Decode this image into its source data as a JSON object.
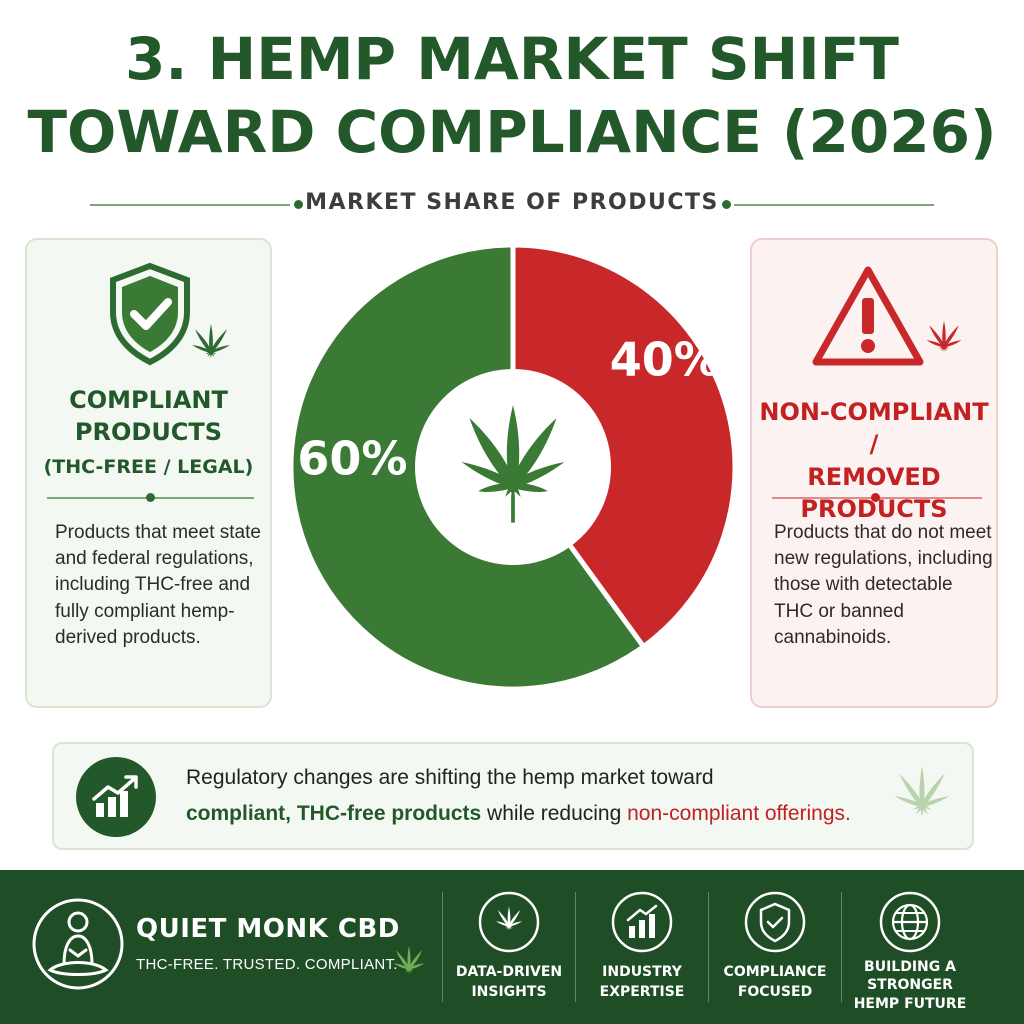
{
  "title": {
    "line1": "3. HEMP MARKET SHIFT",
    "line2": "TOWARD COMPLIANCE (2026)"
  },
  "subtitle": "MARKET SHARE OF PRODUCTS",
  "left_card": {
    "heading_line1": "COMPLIANT",
    "heading_line2": "PRODUCTS",
    "subheading": "(THC-FREE / LEGAL)",
    "body": "Products that meet state and federal regulations, including THC-free and fully compliant hemp-derived products."
  },
  "right_card": {
    "heading_line1": "NON-COMPLIANT /",
    "heading_line2": "REMOVED PRODUCTS",
    "body": "Products that do not meet new regulations, including those with detectable THC or banned cannabinoids."
  },
  "chart_data": {
    "type": "pie",
    "donut": true,
    "title": "MARKET SHARE OF PRODUCTS",
    "slices": [
      {
        "label": "COMPLIANT PRODUCTS (THC-FREE / LEGAL)",
        "value": 60,
        "display": "60%",
        "color": "#3b7a34"
      },
      {
        "label": "NON-COMPLIANT / REMOVED PRODUCTS",
        "value": 40,
        "display": "40%",
        "color": "#c8282a"
      }
    ],
    "center_icon": "cannabis-leaf-icon"
  },
  "banner": {
    "line1": "Regulatory changes are shifting the hemp market toward",
    "line2_highlight_green": "compliant, THC-free products",
    "line2_middle": " while reducing ",
    "line2_highlight_red": "non-compliant offerings.",
    "icon": "growth-chart-icon"
  },
  "footer": {
    "brand": "QUIET MONK CBD",
    "tagline": "THC-FREE. TRUSTED. COMPLIANT.",
    "features": [
      {
        "icon": "cannabis-leaf-icon",
        "line1": "DATA-DRIVEN",
        "line2": "INSIGHTS",
        "line3": ""
      },
      {
        "icon": "bar-chart-icon",
        "line1": "INDUSTRY",
        "line2": "EXPERTISE",
        "line3": ""
      },
      {
        "icon": "shield-check-icon",
        "line1": "COMPLIANCE",
        "line2": "FOCUSED",
        "line3": ""
      },
      {
        "icon": "globe-icon",
        "line1": "BUILDING A",
        "line2": "STRONGER",
        "line3": "HEMP FUTURE"
      }
    ]
  },
  "colors": {
    "green_dark": "#23582a",
    "green": "#3b7a34",
    "red": "#c8282a",
    "footer_bg": "#1f4d25"
  }
}
